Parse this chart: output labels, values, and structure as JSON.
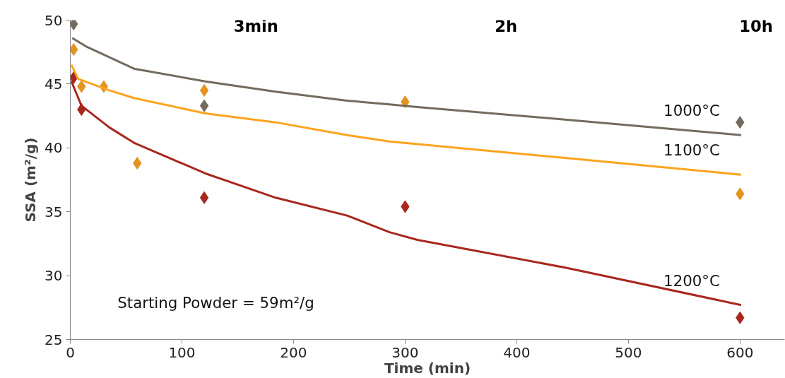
{
  "chart_data": {
    "type": "scatter",
    "xlabel": "Time (min)",
    "ylabel": "SSA (m²/g)",
    "xlim": [
      0,
      640
    ],
    "ylim": [
      25,
      50
    ],
    "xticks": [
      0,
      100,
      200,
      300,
      400,
      500,
      600
    ],
    "yticks": [
      25,
      30,
      35,
      40,
      45,
      50
    ],
    "grid": false,
    "legend": false,
    "annotations": [
      "3min",
      "2h",
      "10h",
      "Starting Powder = 59m²/g"
    ],
    "series": [
      {
        "color": "#746b5d",
        "marker": "diamond",
        "x": [
          3,
          120,
          600
        ],
        "values": [
          49.7,
          43.3,
          42.0
        ]
      },
      {
        "color": "#e39420",
        "marker": "diamond",
        "x": [
          3,
          10,
          30,
          60,
          120,
          300,
          600
        ],
        "values": [
          47.7,
          44.8,
          44.8,
          38.8,
          44.5,
          43.6,
          36.4
        ]
      },
      {
        "color": "#a8281e",
        "marker": "diamond",
        "x": [
          3,
          10,
          120,
          300,
          600
        ],
        "values": [
          45.5,
          43.0,
          36.1,
          35.4,
          26.7
        ]
      },
      {
        "type": "line",
        "name": "1000°C",
        "color": "#746b5d",
        "marker": "none",
        "x": [
          1.7,
          15,
          57,
          121,
          184,
          248,
          286,
          311,
          445,
          601
        ],
        "values": [
          48.6,
          47.9,
          46.2,
          45.2,
          44.4,
          43.7,
          43.4,
          43.2,
          42.2,
          41.0
        ]
      },
      {
        "type": "line",
        "name": "1100°C",
        "color": "#fca41f",
        "marker": "none",
        "x": [
          1,
          7,
          35,
          57,
          121,
          184,
          248,
          286,
          445,
          601
        ],
        "values": [
          46.5,
          45.4,
          44.5,
          43.9,
          42.7,
          42.0,
          41.0,
          40.5,
          39.2,
          37.9
        ]
      },
      {
        "type": "line",
        "name": "1200°C",
        "color": "#a8281e",
        "marker": "none",
        "x": [
          1,
          10,
          35,
          57,
          121,
          184,
          248,
          286,
          311,
          445,
          601
        ],
        "values": [
          45.2,
          43.3,
          41.6,
          40.4,
          38.0,
          36.1,
          34.7,
          33.4,
          32.8,
          30.6,
          27.7
        ]
      }
    ]
  }
}
